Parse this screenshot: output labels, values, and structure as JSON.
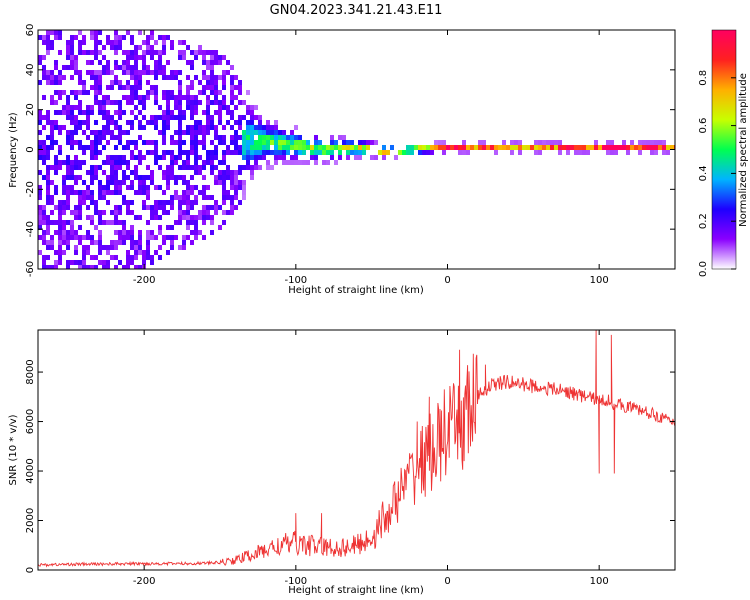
{
  "figure": {
    "title": "GN04.2023.341.21.43.E11"
  },
  "chart_data": [
    {
      "type": "heatmap",
      "title": "GN04.2023.341.21.43.E11",
      "xlabel": "Height of straight line (km)",
      "ylabel": "Frequency (Hz)",
      "xlim": [
        -270,
        150
      ],
      "ylim": [
        -60,
        60
      ],
      "xticks": [
        "-200",
        "-100",
        "0",
        "100"
      ],
      "yticks": [
        "-60",
        "-40",
        "-20",
        "0",
        "20",
        "40",
        "60"
      ],
      "colorbar": {
        "label": "Normalized spectral amplitude",
        "range": [
          0,
          1
        ],
        "ticks": [
          "0.0",
          "0.2",
          "0.4",
          "0.6",
          "0.8"
        ],
        "colormap": [
          "#ffffff",
          "#8a00ff",
          "#1e00ff",
          "#00b4ff",
          "#00ff50",
          "#c8ff00",
          "#ffb000",
          "#ff2020",
          "#ff0060"
        ]
      },
      "band_profile": {
        "x": [
          -270,
          -200,
          -150,
          -120,
          -100,
          -80,
          -60,
          -40,
          -20,
          0,
          20,
          60,
          100,
          150
        ],
        "center_frequency": [
          0,
          0,
          5,
          4,
          2,
          0,
          1,
          -1,
          0,
          1,
          1,
          1,
          1,
          1
        ],
        "half_width": [
          60,
          60,
          45,
          14,
          10,
          8,
          6,
          4,
          3,
          3,
          3,
          3,
          3,
          3
        ],
        "peak_amplitude": [
          0.15,
          0.2,
          0.3,
          0.45,
          0.5,
          0.55,
          0.6,
          0.75,
          0.8,
          0.85,
          0.75,
          0.7,
          0.85,
          0.75
        ]
      },
      "grid": false
    },
    {
      "type": "line",
      "xlabel": "Height of straight line (km)",
      "ylabel": "SNR (10 * v/v)",
      "xlim": [
        -270,
        150
      ],
      "ylim": [
        0,
        9700
      ],
      "xticks": [
        "-200",
        "-100",
        "0",
        "100"
      ],
      "yticks": [
        "0",
        "2000",
        "4000",
        "6000",
        "8000"
      ],
      "color": "#ee3333",
      "series": [
        {
          "x": [
            -270,
            -250,
            -230,
            -210,
            -190,
            -170,
            -150,
            -140,
            -130,
            -120,
            -110,
            -100,
            -90,
            -80,
            -70,
            -60,
            -50,
            -40,
            -30,
            -20,
            -15,
            -10,
            -5,
            0,
            5,
            10,
            15,
            20,
            25,
            30,
            40,
            50,
            60,
            70,
            80,
            90,
            95,
            100,
            105,
            110,
            120,
            130,
            140,
            150
          ],
          "values": [
            200,
            230,
            240,
            250,
            260,
            260,
            300,
            400,
            600,
            800,
            1000,
            1100,
            1000,
            900,
            900,
            1000,
            1300,
            2200,
            3200,
            4200,
            4500,
            4800,
            5200,
            5600,
            5600,
            6000,
            6500,
            7000,
            7300,
            7500,
            7600,
            7500,
            7400,
            7300,
            7200,
            7000,
            7000,
            6800,
            6900,
            6700,
            6600,
            6400,
            6200,
            5900
          ],
          "spikes": [
            {
              "x": -100,
              "y": 2300
            },
            {
              "x": -83,
              "y": 2300
            },
            {
              "x": -20,
              "y": 6000
            },
            {
              "x": -12,
              "y": 7000
            },
            {
              "x": 8,
              "y": 8900
            },
            {
              "x": 25,
              "y": 8300
            },
            {
              "x": 98,
              "y": 9700
            },
            {
              "x": 100,
              "y": 3900
            },
            {
              "x": 108,
              "y": 9500
            },
            {
              "x": 110,
              "y": 3900
            }
          ]
        }
      ],
      "grid": false
    }
  ]
}
